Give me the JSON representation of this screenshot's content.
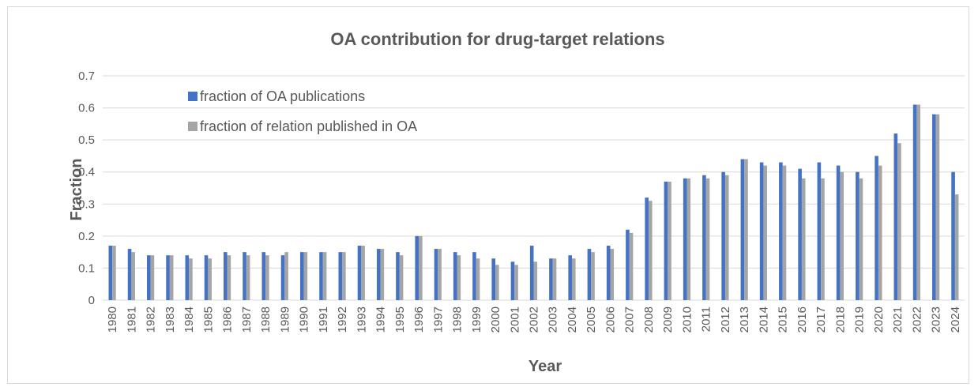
{
  "chart_data": {
    "type": "bar",
    "title": "OA contribution for drug-target relations",
    "xlabel": "Year",
    "ylabel": "Fraction",
    "ylim": [
      0,
      0.7
    ],
    "yticks": [
      "0",
      "0.1",
      "0.2",
      "0.3",
      "0.4",
      "0.5",
      "0.6",
      "0.7"
    ],
    "grid": true,
    "legend_position": "top-left",
    "categories": [
      "1980",
      "1981",
      "1982",
      "1983",
      "1984",
      "1985",
      "1986",
      "1987",
      "1988",
      "1989",
      "1990",
      "1991",
      "1992",
      "1993",
      "1994",
      "1995",
      "1996",
      "1997",
      "1998",
      "1999",
      "2000",
      "2001",
      "2002",
      "2003",
      "2004",
      "2005",
      "2006",
      "2007",
      "2008",
      "2009",
      "2010",
      "2011",
      "2012",
      "2013",
      "2014",
      "2015",
      "2016",
      "2017",
      "2018",
      "2019",
      "2020",
      "2021",
      "2022",
      "2023",
      "2024"
    ],
    "series": [
      {
        "name": "fraction of OA publications",
        "color": "#4472c4",
        "values": [
          0.17,
          0.16,
          0.14,
          0.14,
          0.14,
          0.14,
          0.15,
          0.15,
          0.15,
          0.14,
          0.15,
          0.15,
          0.15,
          0.17,
          0.16,
          0.15,
          0.2,
          0.16,
          0.15,
          0.15,
          0.13,
          0.12,
          0.17,
          0.13,
          0.14,
          0.16,
          0.17,
          0.22,
          0.32,
          0.37,
          0.38,
          0.39,
          0.4,
          0.44,
          0.43,
          0.43,
          0.41,
          0.43,
          0.42,
          0.4,
          0.45,
          0.52,
          0.61,
          0.58,
          0.4
        ]
      },
      {
        "name": "fraction of relation published in OA",
        "color": "#a5a5a5",
        "values": [
          0.17,
          0.15,
          0.14,
          0.14,
          0.13,
          0.13,
          0.14,
          0.14,
          0.14,
          0.15,
          0.15,
          0.15,
          0.15,
          0.17,
          0.16,
          0.14,
          0.2,
          0.16,
          0.14,
          0.13,
          0.11,
          0.11,
          0.12,
          0.13,
          0.13,
          0.15,
          0.16,
          0.21,
          0.31,
          0.37,
          0.38,
          0.38,
          0.39,
          0.44,
          0.42,
          0.42,
          0.38,
          0.38,
          0.4,
          0.38,
          0.42,
          0.49,
          0.61,
          0.58,
          0.33
        ]
      }
    ]
  }
}
